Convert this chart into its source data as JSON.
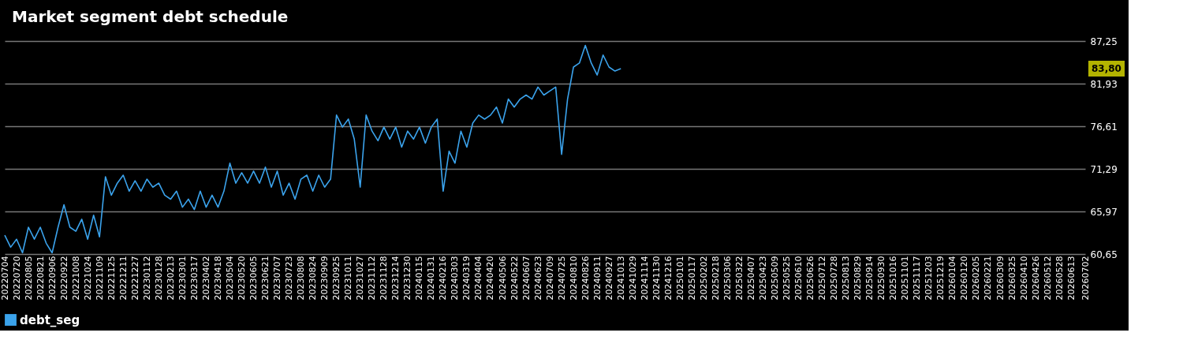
{
  "chart_data": {
    "type": "line",
    "title": "Market segment debt schedule",
    "xlim": [
      "2022-07-04",
      "2026-07-02"
    ],
    "xticks": [
      {
        "value": "2022-07-04",
        "label": "20220704"
      },
      {
        "value": "2022-07-20",
        "label": "20220720"
      },
      {
        "value": "2022-08-05",
        "label": "20220805"
      },
      {
        "value": "2022-08-21",
        "label": "20220821"
      },
      {
        "value": "2022-09-06",
        "label": "20220906"
      },
      {
        "value": "2022-09-22",
        "label": "20220922"
      },
      {
        "value": "2022-10-08",
        "label": "20221008"
      },
      {
        "value": "2022-10-24",
        "label": "20221024"
      },
      {
        "value": "2022-11-09",
        "label": "20221109"
      },
      {
        "value": "2022-11-25",
        "label": "20221125"
      },
      {
        "value": "2022-12-11",
        "label": "20221211"
      },
      {
        "value": "2022-12-27",
        "label": "20221227"
      },
      {
        "value": "2023-01-12",
        "label": "20230112"
      },
      {
        "value": "2023-01-28",
        "label": "20230128"
      },
      {
        "value": "2023-02-13",
        "label": "20230213"
      },
      {
        "value": "2023-03-01",
        "label": "20230301"
      },
      {
        "value": "2023-03-17",
        "label": "20230317"
      },
      {
        "value": "2023-04-02",
        "label": "20230402"
      },
      {
        "value": "2023-04-18",
        "label": "20230418"
      },
      {
        "value": "2023-05-04",
        "label": "20230504"
      },
      {
        "value": "2023-05-20",
        "label": "20230520"
      },
      {
        "value": "2023-06-05",
        "label": "20230605"
      },
      {
        "value": "2023-06-21",
        "label": "20230621"
      },
      {
        "value": "2023-07-07",
        "label": "20230707"
      },
      {
        "value": "2023-07-23",
        "label": "20230723"
      },
      {
        "value": "2023-08-08",
        "label": "20230808"
      },
      {
        "value": "2023-08-24",
        "label": "20230824"
      },
      {
        "value": "2023-09-09",
        "label": "20230909"
      },
      {
        "value": "2023-09-25",
        "label": "20230925"
      },
      {
        "value": "2023-10-11",
        "label": "20231011"
      },
      {
        "value": "2023-10-27",
        "label": "20231027"
      },
      {
        "value": "2023-11-12",
        "label": "20231112"
      },
      {
        "value": "2023-11-28",
        "label": "20231128"
      },
      {
        "value": "2023-12-14",
        "label": "20231214"
      },
      {
        "value": "2023-12-30",
        "label": "20231230"
      },
      {
        "value": "2024-01-15",
        "label": "20240115"
      },
      {
        "value": "2024-01-31",
        "label": "20240131"
      },
      {
        "value": "2024-02-16",
        "label": "20240216"
      },
      {
        "value": "2024-03-03",
        "label": "20240303"
      },
      {
        "value": "2024-03-19",
        "label": "20240319"
      },
      {
        "value": "2024-04-04",
        "label": "20240404"
      },
      {
        "value": "2024-04-20",
        "label": "20240420"
      },
      {
        "value": "2024-05-06",
        "label": "20240506"
      },
      {
        "value": "2024-05-22",
        "label": "20240522"
      },
      {
        "value": "2024-06-07",
        "label": "20240607"
      },
      {
        "value": "2024-06-23",
        "label": "20240623"
      },
      {
        "value": "2024-07-09",
        "label": "20240709"
      },
      {
        "value": "2024-07-25",
        "label": "20240725"
      },
      {
        "value": "2024-08-10",
        "label": "20240810"
      },
      {
        "value": "2024-08-26",
        "label": "20240826"
      },
      {
        "value": "2024-09-11",
        "label": "20240911"
      },
      {
        "value": "2024-09-27",
        "label": "20240927"
      },
      {
        "value": "2024-10-13",
        "label": "20241013"
      },
      {
        "value": "2024-10-29",
        "label": "20241029"
      },
      {
        "value": "2024-11-14",
        "label": "20241114"
      },
      {
        "value": "2024-11-30",
        "label": "20241130"
      },
      {
        "value": "2024-12-16",
        "label": "20241216"
      },
      {
        "value": "2025-01-01",
        "label": "20250101"
      },
      {
        "value": "2025-01-17",
        "label": "20250117"
      },
      {
        "value": "2025-02-02",
        "label": "20250202"
      },
      {
        "value": "2025-02-18",
        "label": "20250218"
      },
      {
        "value": "2025-03-06",
        "label": "20250306"
      },
      {
        "value": "2025-03-22",
        "label": "20250322"
      },
      {
        "value": "2025-04-07",
        "label": "20250407"
      },
      {
        "value": "2025-04-23",
        "label": "20250423"
      },
      {
        "value": "2025-05-09",
        "label": "20250509"
      },
      {
        "value": "2025-05-25",
        "label": "20250525"
      },
      {
        "value": "2025-06-10",
        "label": "20250610"
      },
      {
        "value": "2025-06-26",
        "label": "20250626"
      },
      {
        "value": "2025-07-12",
        "label": "20250712"
      },
      {
        "value": "2025-07-28",
        "label": "20250728"
      },
      {
        "value": "2025-08-13",
        "label": "20250813"
      },
      {
        "value": "2025-08-29",
        "label": "20250829"
      },
      {
        "value": "2025-09-14",
        "label": "20250914"
      },
      {
        "value": "2025-09-30",
        "label": "20250930"
      },
      {
        "value": "2025-10-16",
        "label": "20251016"
      },
      {
        "value": "2025-11-01",
        "label": "20251101"
      },
      {
        "value": "2025-11-17",
        "label": "20251117"
      },
      {
        "value": "2025-12-03",
        "label": "20251203"
      },
      {
        "value": "2025-12-19",
        "label": "20251219"
      },
      {
        "value": "2026-01-04",
        "label": "20260104"
      },
      {
        "value": "2026-01-20",
        "label": "20260120"
      },
      {
        "value": "2026-02-05",
        "label": "20260205"
      },
      {
        "value": "2026-02-21",
        "label": "20260221"
      },
      {
        "value": "2026-03-09",
        "label": "20260309"
      },
      {
        "value": "2026-03-25",
        "label": "20260325"
      },
      {
        "value": "2026-04-10",
        "label": "20260410"
      },
      {
        "value": "2026-04-26",
        "label": "20260426"
      },
      {
        "value": "2026-05-12",
        "label": "20260512"
      },
      {
        "value": "2026-05-28",
        "label": "20260528"
      },
      {
        "value": "2026-06-13",
        "label": "20260613"
      },
      {
        "value": "2026-07-02",
        "label": "20260702"
      }
    ],
    "ylim": [
      60.65,
      87.25
    ],
    "yticks": [
      {
        "value": 60.65,
        "label": "60,65"
      },
      {
        "value": 65.97,
        "label": "65,97"
      },
      {
        "value": 71.29,
        "label": "71,29"
      },
      {
        "value": 76.61,
        "label": "76,61"
      },
      {
        "value": 81.93,
        "label": "81,93"
      },
      {
        "value": 87.25,
        "label": "87,25"
      }
    ],
    "grid": "y",
    "legend": "bottom",
    "annotations": [
      "83,80"
    ],
    "series": [
      {
        "name": "debt_seg",
        "color": "#3ba3ec",
        "x": [
          "2022-07-04",
          "2022-07-12",
          "2022-07-20",
          "2022-07-28",
          "2022-08-05",
          "2022-08-13",
          "2022-08-21",
          "2022-08-29",
          "2022-09-06",
          "2022-09-14",
          "2022-09-22",
          "2022-09-30",
          "2022-10-08",
          "2022-10-16",
          "2022-10-24",
          "2022-11-01",
          "2022-11-09",
          "2022-11-17",
          "2022-11-25",
          "2022-12-03",
          "2022-12-11",
          "2022-12-19",
          "2022-12-27",
          "2023-01-04",
          "2023-01-12",
          "2023-01-20",
          "2023-01-28",
          "2023-02-05",
          "2023-02-13",
          "2023-02-21",
          "2023-03-01",
          "2023-03-09",
          "2023-03-17",
          "2023-03-25",
          "2023-04-02",
          "2023-04-10",
          "2023-04-18",
          "2023-04-26",
          "2023-05-04",
          "2023-05-12",
          "2023-05-20",
          "2023-05-28",
          "2023-06-05",
          "2023-06-13",
          "2023-06-21",
          "2023-06-29",
          "2023-07-07",
          "2023-07-15",
          "2023-07-23",
          "2023-07-31",
          "2023-08-08",
          "2023-08-16",
          "2023-08-24",
          "2023-09-01",
          "2023-09-09",
          "2023-09-17",
          "2023-09-25",
          "2023-10-03",
          "2023-10-11",
          "2023-10-19",
          "2023-10-27",
          "2023-11-04",
          "2023-11-12",
          "2023-11-20",
          "2023-11-28",
          "2023-12-06",
          "2023-12-14",
          "2023-12-22",
          "2023-12-30",
          "2024-01-07",
          "2024-01-15",
          "2024-01-23",
          "2024-01-31",
          "2024-02-08",
          "2024-02-16",
          "2024-02-24",
          "2024-03-03",
          "2024-03-11",
          "2024-03-19",
          "2024-03-27",
          "2024-04-04",
          "2024-04-12",
          "2024-04-20",
          "2024-04-28",
          "2024-05-06",
          "2024-05-14",
          "2024-05-22",
          "2024-05-30",
          "2024-06-07",
          "2024-06-15",
          "2024-06-23",
          "2024-07-01",
          "2024-07-09",
          "2024-07-17",
          "2024-07-25",
          "2024-08-02",
          "2024-08-10",
          "2024-08-18",
          "2024-08-26",
          "2024-09-03",
          "2024-09-11",
          "2024-09-19",
          "2024-09-27",
          "2024-10-05",
          "2024-10-13"
        ],
        "values": [
          63.0,
          61.5,
          62.5,
          60.8,
          64.0,
          62.5,
          64.0,
          62.0,
          60.8,
          64.0,
          66.8,
          64.0,
          63.5,
          65.0,
          62.5,
          65.5,
          62.8,
          70.3,
          68.0,
          69.5,
          70.5,
          68.5,
          69.8,
          68.5,
          70.0,
          69.0,
          69.5,
          68.0,
          67.5,
          68.5,
          66.5,
          67.5,
          66.2,
          68.5,
          66.5,
          68.0,
          66.5,
          68.5,
          72.0,
          69.5,
          70.8,
          69.5,
          71.0,
          69.5,
          71.5,
          69.0,
          71.0,
          68.0,
          69.5,
          67.5,
          70.0,
          70.5,
          68.5,
          70.5,
          69.0,
          70.0,
          78.0,
          76.5,
          77.5,
          75.0,
          69.0,
          78.0,
          76.0,
          74.8,
          76.5,
          75.0,
          76.5,
          74.0,
          76.0,
          75.0,
          76.5,
          74.5,
          76.5,
          77.5,
          68.5,
          73.5,
          72.0,
          76.0,
          74.0,
          77.0,
          78.0,
          77.5,
          78.0,
          79.0,
          77.0,
          80.0,
          79.0,
          80.0,
          80.5,
          80.0,
          81.5,
          80.5,
          81.0,
          81.5,
          73.1,
          80.0,
          84.0,
          84.5,
          86.7,
          84.5,
          83.0,
          85.5,
          84.0,
          83.5,
          83.8
        ]
      }
    ]
  }
}
